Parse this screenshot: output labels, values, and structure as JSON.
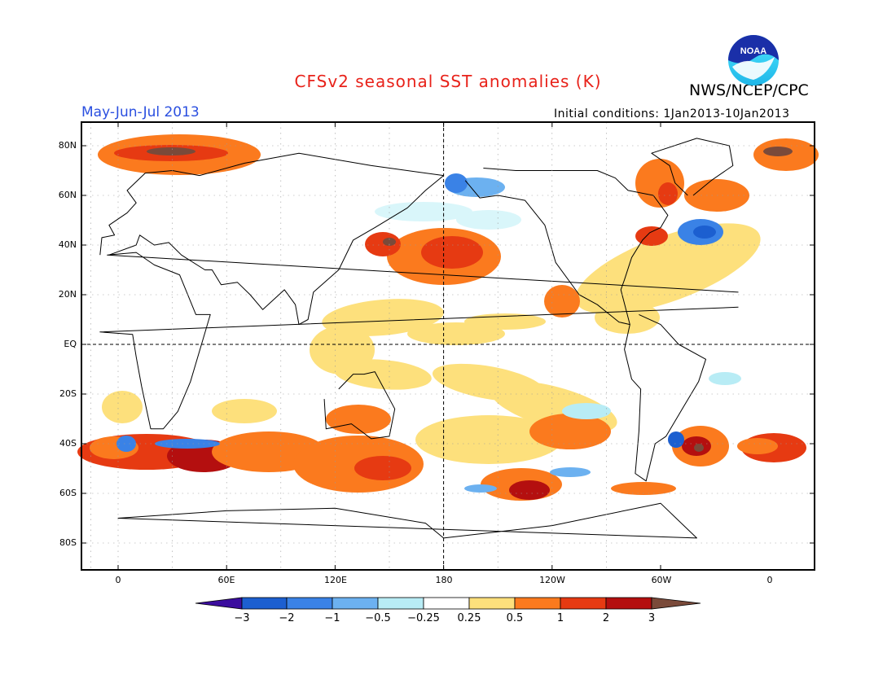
{
  "header": {
    "title": "CFSv2 seasonal SST anomalies (K)",
    "agency": "NWS/NCEP/CPC",
    "season": "May-Jun-Jul 2013",
    "initial_conditions": "Initial conditions: 1Jan2013-10Jan2013",
    "logo_text": "NOAA"
  },
  "map": {
    "lat_labels": [
      "80N",
      "60N",
      "40N",
      "20N",
      "EQ",
      "20S",
      "40S",
      "60S",
      "80S"
    ],
    "lon_labels": [
      "0",
      "60E",
      "120E",
      "180",
      "120W",
      "60W",
      "0"
    ]
  },
  "colorbar": {
    "labels": [
      "−3",
      "−2",
      "−1",
      "−0.5",
      "−0.25",
      "0.25",
      "0.5",
      "1",
      "2",
      "3"
    ],
    "colors": [
      "#3b0d9e",
      "#1c5fd0",
      "#3a82e6",
      "#6cb1f0",
      "#b8ecf5",
      "#ffffff",
      "#fde07c",
      "#fb7a1e",
      "#e63a12",
      "#b40f0f",
      "#7a4a3a"
    ]
  },
  "colors": {
    "title": "#e8221a",
    "season": "#2a4fe0"
  }
}
